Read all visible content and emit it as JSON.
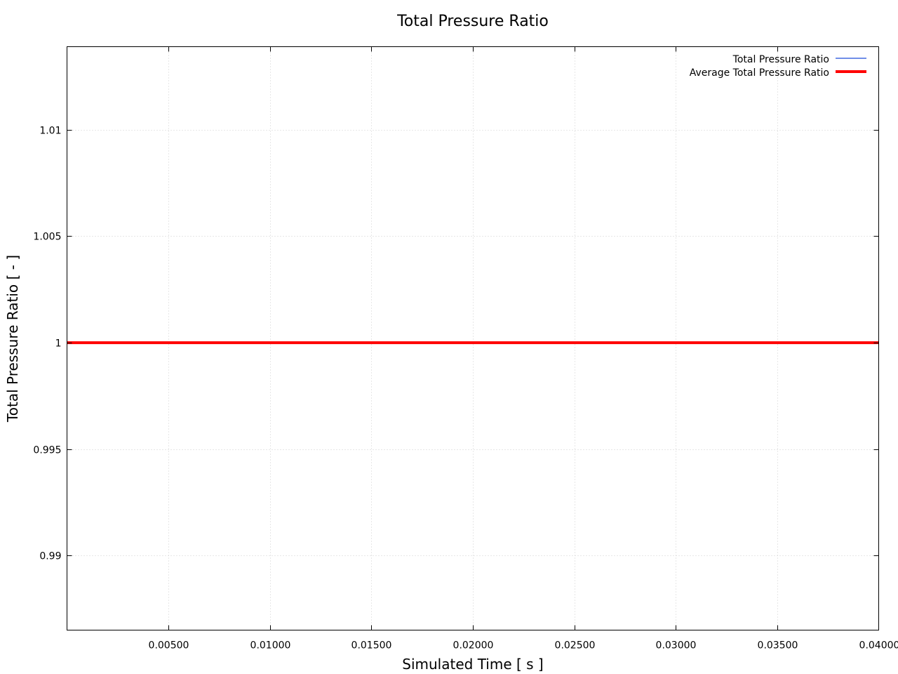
{
  "chart_data": {
    "type": "line",
    "title": "Total Pressure Ratio",
    "xlabel": "Simulated Time [ s ]",
    "ylabel": "Total Pressure Ratio [ - ]",
    "xlim": [
      0.0,
      0.04
    ],
    "ylim": [
      0.9865,
      1.0139
    ],
    "x_ticks": [
      0.005,
      0.01,
      0.015,
      0.02,
      0.025,
      0.03,
      0.035,
      0.04
    ],
    "x_tick_labels": [
      "0.00500",
      "0.01000",
      "0.01500",
      "0.02000",
      "0.02500",
      "0.03000",
      "0.03500",
      "0.04000"
    ],
    "y_ticks": [
      0.99,
      0.995,
      1.0,
      1.005,
      1.01
    ],
    "y_tick_labels": [
      "0.99",
      "0.995",
      "1",
      "1.005",
      "1.01"
    ],
    "grid": true,
    "legend_position": "top-right",
    "series": [
      {
        "name": "Total Pressure Ratio",
        "color": "#4169e1",
        "x": [
          0.0,
          0.005,
          0.01,
          0.015,
          0.02,
          0.025,
          0.03,
          0.035,
          0.04
        ],
        "values": [
          1.0,
          1.0,
          1.0,
          1.0,
          1.0,
          1.0,
          1.0,
          1.0,
          1.0
        ]
      },
      {
        "name": "Average Total Pressure Ratio",
        "color": "#ff0000",
        "x": [
          0.0,
          0.005,
          0.01,
          0.015,
          0.02,
          0.025,
          0.03,
          0.035,
          0.04
        ],
        "values": [
          1.0,
          1.0,
          1.0,
          1.0,
          1.0,
          1.0,
          1.0,
          1.0,
          1.0
        ]
      }
    ]
  }
}
